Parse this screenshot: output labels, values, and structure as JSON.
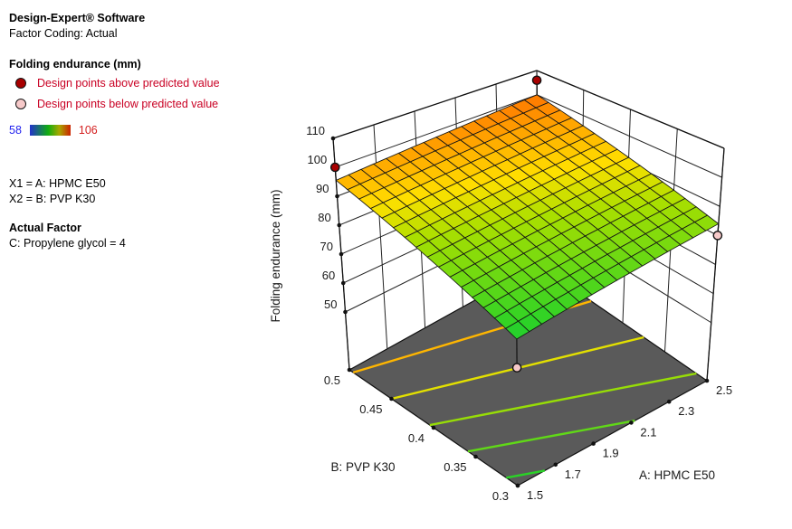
{
  "panel": {
    "title": "Design-Expert® Software",
    "subtitle": "Factor Coding: Actual",
    "response_label": "Folding endurance (mm)",
    "legend": [
      {
        "label": "Design points above predicted value",
        "dot_color": "#a80000"
      },
      {
        "label": "Design points below predicted value",
        "dot_color": "#f6c9c9"
      }
    ],
    "color_scale": {
      "min": "58",
      "max": "106"
    },
    "x1_label": "X1 = A: HPMC E50",
    "x2_label": "X2 = B: PVP K30",
    "actual_factor_heading": "Actual Factor",
    "actual_factor_value": "C: Propylene glycol = 4"
  },
  "chart_data": {
    "type": "surface3d",
    "response": "Folding endurance (mm)",
    "x_axis": {
      "label": "A: HPMC E50",
      "min": 1.5,
      "max": 2.5,
      "ticks": [
        "1.5",
        "1.7",
        "1.9",
        "2.1",
        "2.3",
        "2.5"
      ]
    },
    "y_axis": {
      "label": "B: PVP K30",
      "min": 0.3,
      "max": 0.5,
      "ticks": [
        "0.3",
        "0.35",
        "0.4",
        "0.45",
        "0.5"
      ]
    },
    "z_axis": {
      "label": "Folding endurance (mm)",
      "ticks": [
        50,
        60,
        70,
        80,
        90,
        100,
        110
      ],
      "floor_value": 30,
      "top_value": 110
    },
    "color_range": {
      "min": 58,
      "max": 106
    },
    "surface_corner_values": [
      {
        "A": 1.5,
        "B": 0.3,
        "z": 73.5
      },
      {
        "A": 2.5,
        "B": 0.3,
        "z": 84
      },
      {
        "A": 1.5,
        "B": 0.5,
        "z": 95.5
      },
      {
        "A": 2.5,
        "B": 0.5,
        "z": 100
      }
    ],
    "mesh_divisions": 16,
    "contour_levels": [
      75,
      80,
      85,
      90,
      95
    ],
    "floor_color": "#5a5a5a",
    "design_points": [
      {
        "A": 1.5,
        "B": 0.5,
        "value": 100,
        "type": "above"
      },
      {
        "A": 2.5,
        "B": 0.5,
        "value": 106,
        "type": "above"
      },
      {
        "A": 2.5,
        "B": 0.3,
        "value": 80,
        "type": "below"
      },
      {
        "A": 1.5,
        "B": 0.3,
        "value": 65,
        "type": "below"
      }
    ],
    "point_colors": {
      "above": "#a80000",
      "below": "#f6c9c9"
    }
  }
}
